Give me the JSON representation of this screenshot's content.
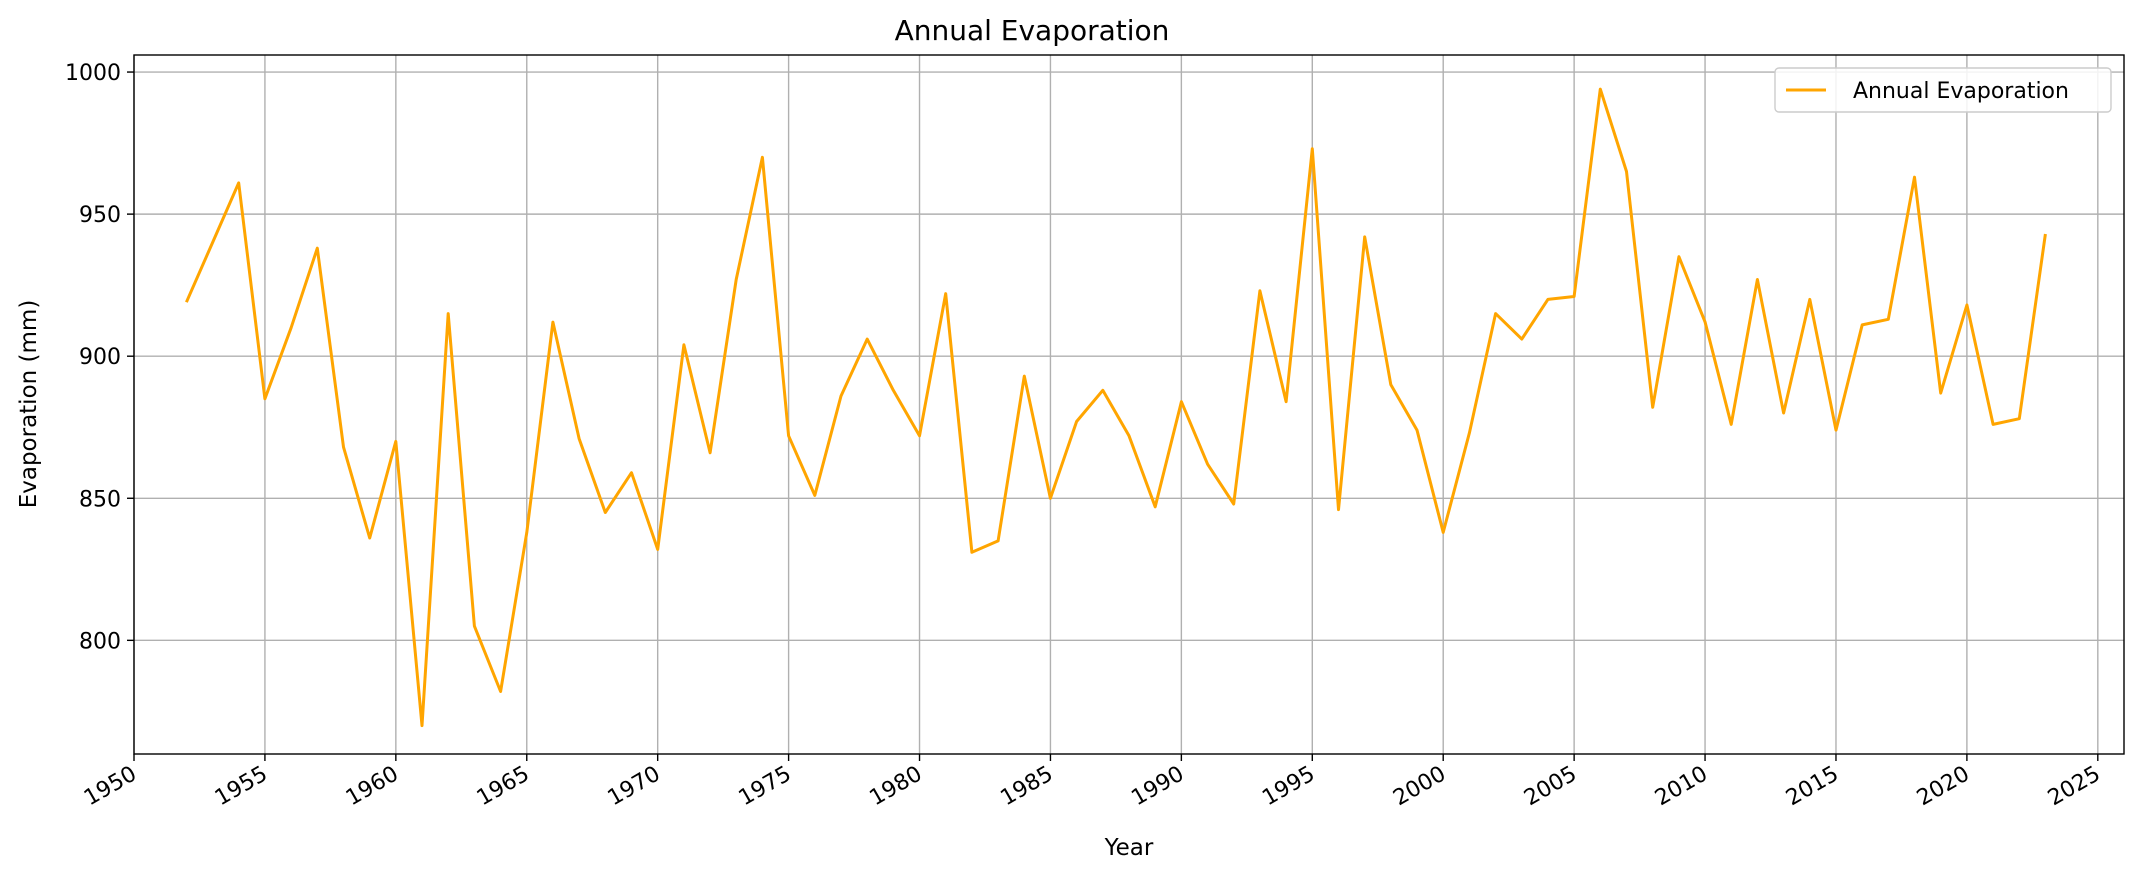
{
  "chart_data": {
    "type": "line",
    "title": "Annual Evaporation",
    "xlabel": "Year",
    "ylabel": "Evaporation (mm)",
    "xlim": [
      1950,
      2026
    ],
    "ylim": [
      760,
      1006
    ],
    "x_ticks": [
      1950,
      1955,
      1960,
      1965,
      1970,
      1975,
      1980,
      1985,
      1990,
      1995,
      2000,
      2005,
      2010,
      2015,
      2020,
      2025
    ],
    "x_tick_labels": [
      "1950",
      "1955",
      "1960",
      "1965",
      "1970",
      "1975",
      "1980",
      "1985",
      "1990",
      "1995",
      "2000",
      "2005",
      "2010",
      "2015",
      "2020",
      "2025"
    ],
    "y_ticks": [
      800,
      850,
      900,
      950,
      1000
    ],
    "y_tick_labels": [
      "800",
      "850",
      "900",
      "950",
      "1000"
    ],
    "grid": true,
    "legend_position": "top-right",
    "colors": {
      "line": "#FFA500",
      "grid": "#b0b0b0",
      "axis": "#000000"
    },
    "series": [
      {
        "name": "Annual Evaporation",
        "x": [
          1952,
          1953,
          1954,
          1955,
          1956,
          1957,
          1958,
          1959,
          1960,
          1961,
          1962,
          1963,
          1964,
          1965,
          1966,
          1967,
          1968,
          1969,
          1970,
          1971,
          1972,
          1973,
          1974,
          1975,
          1976,
          1977,
          1978,
          1979,
          1980,
          1981,
          1982,
          1983,
          1984,
          1985,
          1986,
          1987,
          1988,
          1989,
          1990,
          1991,
          1992,
          1993,
          1994,
          1995,
          1996,
          1997,
          1998,
          1999,
          2000,
          2001,
          2002,
          2003,
          2004,
          2005,
          2006,
          2007,
          2008,
          2009,
          2010,
          2011,
          2012,
          2013,
          2014,
          2015,
          2016,
          2017,
          2018,
          2019,
          2020,
          2021,
          2022,
          2023
        ],
        "values": [
          919,
          940,
          961,
          885,
          910,
          938,
          868,
          836,
          870,
          770,
          915,
          805,
          782,
          838,
          912,
          871,
          845,
          859,
          832,
          904,
          866,
          927,
          970,
          872,
          851,
          886,
          906,
          888,
          872,
          922,
          831,
          835,
          893,
          850,
          877,
          888,
          872,
          847,
          884,
          862,
          848,
          923,
          884,
          973,
          846,
          942,
          890,
          874,
          838,
          873,
          915,
          906,
          920,
          921,
          994,
          965,
          882,
          935,
          912,
          876,
          927,
          880,
          920,
          874,
          911,
          913,
          963,
          887,
          918,
          876,
          878,
          943
        ]
      }
    ]
  }
}
